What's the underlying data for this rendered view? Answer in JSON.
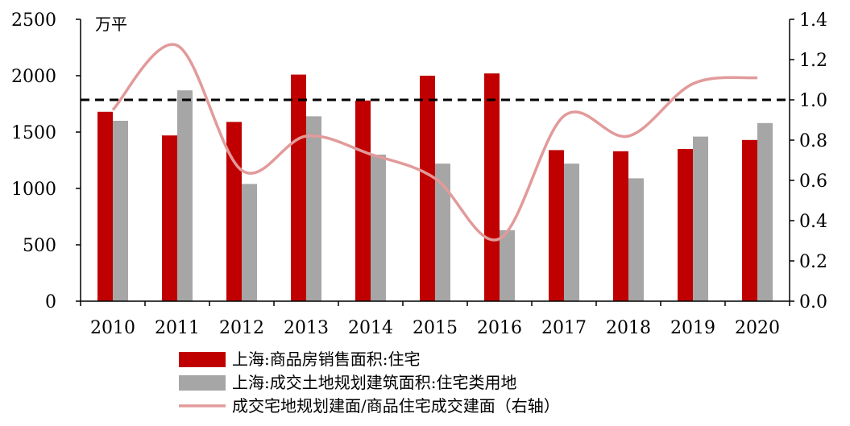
{
  "chart_data": {
    "type": "bar",
    "unit_label": "万平",
    "categories": [
      "2010",
      "2011",
      "2012",
      "2013",
      "2014",
      "2015",
      "2016",
      "2017",
      "2018",
      "2019",
      "2020"
    ],
    "ylim_left": [
      0,
      2500
    ],
    "yticks_left": [
      "0",
      "500",
      "1000",
      "1500",
      "2000",
      "2500"
    ],
    "ylim_right": [
      0,
      1.4
    ],
    "yticks_right": [
      "0.0",
      "0.2",
      "0.4",
      "0.6",
      "0.8",
      "1.0",
      "1.2",
      "1.4"
    ],
    "reference_line_right": 1.0,
    "series": [
      {
        "name": "上海:商品房销售面积:住宅",
        "type": "bar",
        "axis": "left",
        "color": "#c00000",
        "values": [
          1680,
          1470,
          1590,
          2010,
          1780,
          2000,
          2020,
          1340,
          1330,
          1350,
          1430
        ]
      },
      {
        "name": "上海:成交土地规划建筑面积:住宅类用地",
        "type": "bar",
        "axis": "left",
        "color": "#a6a6a6",
        "values": [
          1600,
          1870,
          1040,
          1640,
          1300,
          1220,
          630,
          1220,
          1090,
          1460,
          1580
        ]
      },
      {
        "name": "成交宅地规划建面/商品住宅成交建面（右轴）",
        "type": "line",
        "axis": "right",
        "color": "#e29a9a",
        "values": [
          0.95,
          1.27,
          0.65,
          0.82,
          0.73,
          0.61,
          0.31,
          0.92,
          0.82,
          1.08,
          1.11
        ]
      }
    ],
    "grid": false,
    "legend_position": "bottom"
  }
}
